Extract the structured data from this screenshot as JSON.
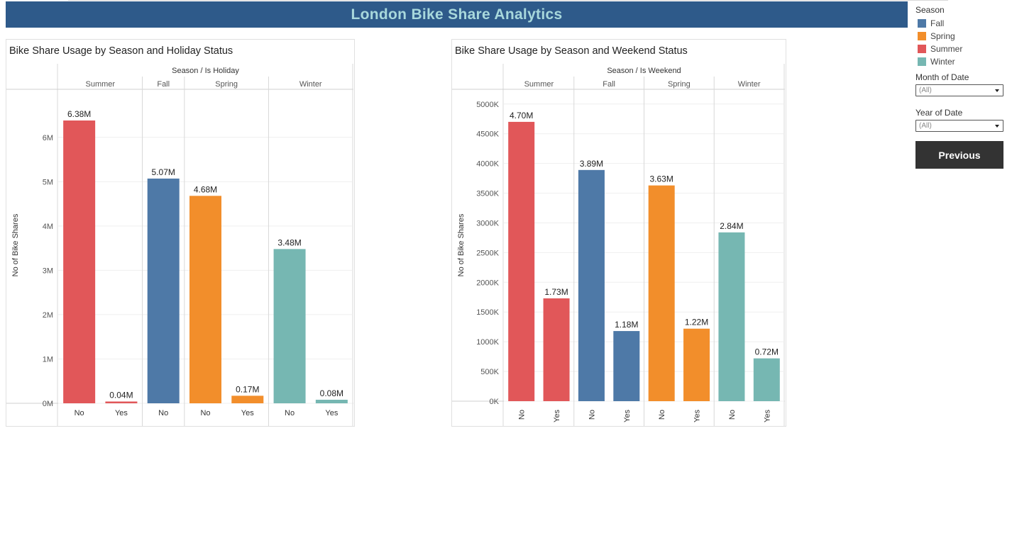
{
  "header": {
    "title": "London Bike Share Analytics"
  },
  "legend": {
    "title": "Season",
    "items": [
      {
        "label": "Fall",
        "color": "#4e79a7"
      },
      {
        "label": "Spring",
        "color": "#f28e2b"
      },
      {
        "label": "Summer",
        "color": "#e15759"
      },
      {
        "label": "Winter",
        "color": "#76b7b2"
      }
    ]
  },
  "filters": [
    {
      "label": "Month of Date",
      "value": "(All)"
    },
    {
      "label": "Year of Date",
      "value": "(All)"
    }
  ],
  "previous_button": {
    "label": "Previous"
  },
  "chart_data": [
    {
      "type": "bar",
      "title": "Bike Share Usage by Season and Holiday Status",
      "column_header": "Season / Is Holiday",
      "ylabel": "No of Bike Shares",
      "ylim": [
        0,
        6700000
      ],
      "yticks": [
        {
          "value": 0,
          "label": "0M"
        },
        {
          "value": 1000000,
          "label": "1M"
        },
        {
          "value": 2000000,
          "label": "2M"
        },
        {
          "value": 3000000,
          "label": "3M"
        },
        {
          "value": 4000000,
          "label": "4M"
        },
        {
          "value": 5000000,
          "label": "5M"
        },
        {
          "value": 6000000,
          "label": "6M"
        }
      ],
      "grid": true,
      "groups": [
        {
          "season": "Summer",
          "color": "#e15759",
          "bars": [
            {
              "category": "No",
              "value": 6380000,
              "label": "6.38M"
            },
            {
              "category": "Yes",
              "value": 40000,
              "label": "0.04M"
            }
          ]
        },
        {
          "season": "Fall",
          "color": "#4e79a7",
          "bars": [
            {
              "category": "No",
              "value": 5070000,
              "label": "5.07M"
            }
          ]
        },
        {
          "season": "Spring",
          "color": "#f28e2b",
          "bars": [
            {
              "category": "No",
              "value": 4680000,
              "label": "4.68M"
            },
            {
              "category": "Yes",
              "value": 170000,
              "label": "0.17M"
            }
          ]
        },
        {
          "season": "Winter",
          "color": "#76b7b2",
          "bars": [
            {
              "category": "No",
              "value": 3480000,
              "label": "3.48M"
            },
            {
              "category": "Yes",
              "value": 80000,
              "label": "0.08M"
            }
          ]
        }
      ]
    },
    {
      "type": "bar",
      "title": "Bike Share Usage by Season and Weekend Status",
      "column_header": "Season / Is Weekend",
      "ylabel": "No of Bike Shares",
      "ylim": [
        0,
        5200000
      ],
      "yticks": [
        {
          "value": 0,
          "label": "0K"
        },
        {
          "value": 500000,
          "label": "500K"
        },
        {
          "value": 1000000,
          "label": "1000K"
        },
        {
          "value": 1500000,
          "label": "1500K"
        },
        {
          "value": 2000000,
          "label": "2000K"
        },
        {
          "value": 2500000,
          "label": "2500K"
        },
        {
          "value": 3000000,
          "label": "3000K"
        },
        {
          "value": 3500000,
          "label": "3500K"
        },
        {
          "value": 4000000,
          "label": "4000K"
        },
        {
          "value": 4500000,
          "label": "4500K"
        },
        {
          "value": 5000000,
          "label": "5000K"
        }
      ],
      "grid": true,
      "groups": [
        {
          "season": "Summer",
          "color": "#e15759",
          "bars": [
            {
              "category": "No",
              "value": 4700000,
              "label": "4.70M"
            },
            {
              "category": "Yes",
              "value": 1730000,
              "label": "1.73M"
            }
          ]
        },
        {
          "season": "Fall",
          "color": "#4e79a7",
          "bars": [
            {
              "category": "No",
              "value": 3890000,
              "label": "3.89M"
            },
            {
              "category": "Yes",
              "value": 1180000,
              "label": "1.18M"
            }
          ]
        },
        {
          "season": "Spring",
          "color": "#f28e2b",
          "bars": [
            {
              "category": "No",
              "value": 3630000,
              "label": "3.63M"
            },
            {
              "category": "Yes",
              "value": 1220000,
              "label": "1.22M"
            }
          ]
        },
        {
          "season": "Winter",
          "color": "#76b7b2",
          "bars": [
            {
              "category": "No",
              "value": 2840000,
              "label": "2.84M"
            },
            {
              "category": "Yes",
              "value": 720000,
              "label": "0.72M"
            }
          ]
        }
      ]
    }
  ]
}
